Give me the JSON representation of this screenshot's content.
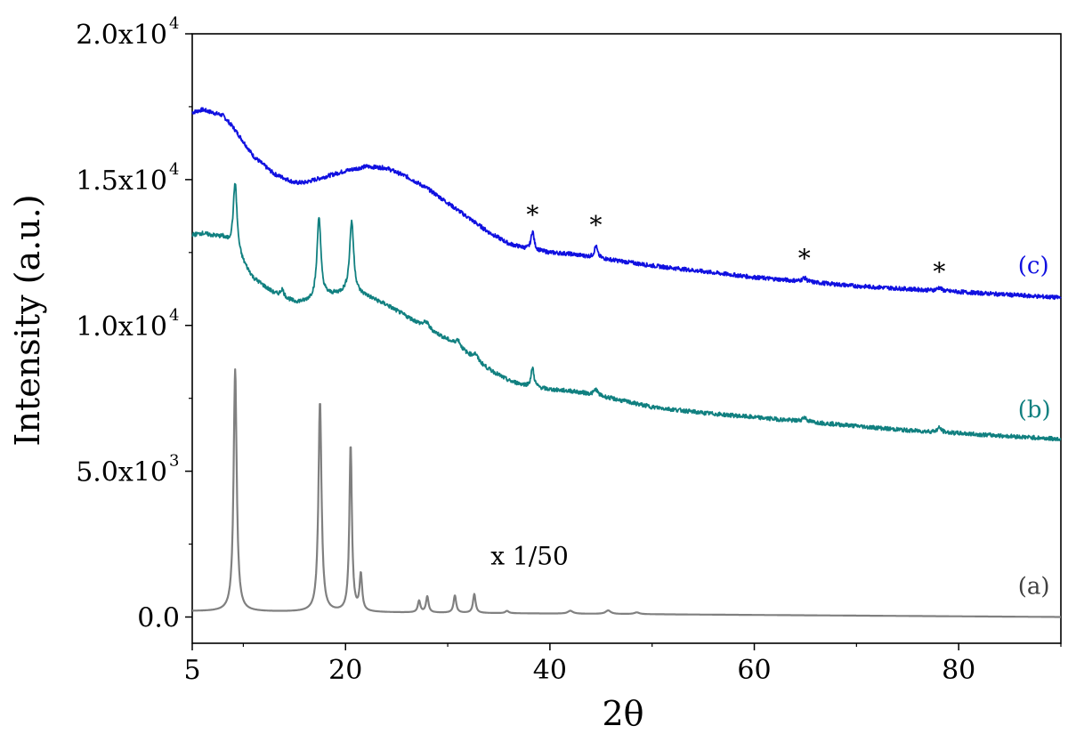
{
  "chart_data": {
    "type": "line",
    "xlabel": "2θ",
    "ylabel": "Intensity (a.u.)",
    "xlim": [
      5,
      90
    ],
    "ylim": [
      -900,
      20000
    ],
    "x_ticks": [
      {
        "value": 5,
        "label": "5"
      },
      {
        "value": 20,
        "label": "20"
      },
      {
        "value": 40,
        "label": "40"
      },
      {
        "value": 60,
        "label": "60"
      },
      {
        "value": 80,
        "label": "80"
      }
    ],
    "y_ticks": [
      {
        "value": 0,
        "mantissa": "0.0",
        "exp": ""
      },
      {
        "value": 5000,
        "mantissa": "5.0x10",
        "exp": "3"
      },
      {
        "value": 10000,
        "mantissa": "1.0x10",
        "exp": "4"
      },
      {
        "value": 15000,
        "mantissa": "1.5x10",
        "exp": "4"
      },
      {
        "value": 20000,
        "mantissa": "2.0x10",
        "exp": "4"
      }
    ],
    "grid": false,
    "series": [
      {
        "name": "(c)",
        "color": "#1010e0",
        "x": [
          5,
          6,
          8,
          9,
          10,
          11,
          13,
          15,
          16,
          17,
          18,
          19,
          20,
          22,
          24,
          26,
          28,
          30,
          32,
          34,
          36,
          38,
          40,
          42,
          44,
          46,
          48,
          50,
          55,
          60,
          65,
          70,
          75,
          80,
          85,
          90
        ],
        "y": [
          17300,
          17400,
          17200,
          16800,
          16300,
          15800,
          15200,
          14900,
          14900,
          15000,
          15100,
          15200,
          15300,
          15450,
          15400,
          15100,
          14700,
          14200,
          13700,
          13200,
          12800,
          12600,
          12500,
          12450,
          12350,
          12250,
          12150,
          12050,
          11850,
          11650,
          11500,
          11350,
          11250,
          11150,
          11050,
          10950
        ],
        "peaks": [
          {
            "x": 38.3,
            "h": 650,
            "w": 0.18
          },
          {
            "x": 44.5,
            "h": 400,
            "w": 0.18
          },
          {
            "x": 64.9,
            "h": 130,
            "w": 0.25
          },
          {
            "x": 78.1,
            "h": 110,
            "w": 0.25
          }
        ]
      },
      {
        "name": "(b)",
        "color": "#118080",
        "x": [
          5,
          6,
          8,
          9,
          10,
          11,
          13,
          15,
          16,
          17,
          18,
          19,
          20,
          22,
          24,
          26,
          28,
          30,
          32,
          34,
          36,
          38,
          40,
          42,
          44,
          46,
          48,
          50,
          55,
          60,
          65,
          70,
          75,
          80,
          85,
          90
        ],
        "y": [
          13100,
          13150,
          13000,
          12600,
          12100,
          11600,
          11100,
          10800,
          10800,
          10900,
          11000,
          11050,
          11100,
          11000,
          10700,
          10300,
          9900,
          9500,
          9000,
          8500,
          8100,
          7900,
          7800,
          7750,
          7650,
          7500,
          7350,
          7200,
          7000,
          6850,
          6700,
          6550,
          6400,
          6300,
          6200,
          6100
        ],
        "peaks": [
          {
            "x": 9.2,
            "h": 2400,
            "w": 0.22
          },
          {
            "x": 13.8,
            "h": 250,
            "w": 0.2
          },
          {
            "x": 17.4,
            "h": 2800,
            "w": 0.22
          },
          {
            "x": 20.6,
            "h": 2500,
            "w": 0.24
          },
          {
            "x": 27.9,
            "h": 200,
            "w": 0.3
          },
          {
            "x": 31.0,
            "h": 250,
            "w": 0.3
          },
          {
            "x": 32.7,
            "h": 200,
            "w": 0.3
          },
          {
            "x": 38.3,
            "h": 650,
            "w": 0.18
          },
          {
            "x": 44.5,
            "h": 200,
            "w": 0.2
          },
          {
            "x": 64.9,
            "h": 150,
            "w": 0.25
          },
          {
            "x": 78.1,
            "h": 150,
            "w": 0.25
          }
        ]
      },
      {
        "name": "(a)",
        "color": "#808080",
        "x": [
          5,
          90
        ],
        "y": [
          200,
          0
        ],
        "peaks": [
          {
            "x": 9.2,
            "h": 8300,
            "w": 0.18
          },
          {
            "x": 17.5,
            "h": 7200,
            "w": 0.18
          },
          {
            "x": 20.5,
            "h": 5700,
            "w": 0.15
          },
          {
            "x": 21.5,
            "h": 1250,
            "w": 0.15
          },
          {
            "x": 27.2,
            "h": 400,
            "w": 0.15
          },
          {
            "x": 28.0,
            "h": 550,
            "w": 0.15
          },
          {
            "x": 30.7,
            "h": 600,
            "w": 0.15
          },
          {
            "x": 32.6,
            "h": 650,
            "w": 0.15
          },
          {
            "x": 35.8,
            "h": 80,
            "w": 0.2
          },
          {
            "x": 42.0,
            "h": 100,
            "w": 0.3
          },
          {
            "x": 45.7,
            "h": 120,
            "w": 0.3
          },
          {
            "x": 48.5,
            "h": 60,
            "w": 0.3
          }
        ]
      }
    ],
    "annotations": [
      {
        "text": "(c)",
        "x": 85.8,
        "y": 11800,
        "color": "#1010e0"
      },
      {
        "text": "(b)",
        "x": 85.8,
        "y": 6850,
        "color": "#118080"
      },
      {
        "text": "(a)",
        "x": 85.8,
        "y": 800,
        "color": "#404040"
      },
      {
        "text": "x 1/50",
        "x": 34.2,
        "y": 1800,
        "color": "#000000"
      },
      {
        "text": "*",
        "x": 38.3,
        "y": 13500,
        "color": "#000000"
      },
      {
        "text": "*",
        "x": 44.5,
        "y": 13150,
        "color": "#000000"
      },
      {
        "text": "*",
        "x": 64.9,
        "y": 12000,
        "color": "#000000"
      },
      {
        "text": "*",
        "x": 78.1,
        "y": 11550,
        "color": "#000000"
      }
    ]
  }
}
